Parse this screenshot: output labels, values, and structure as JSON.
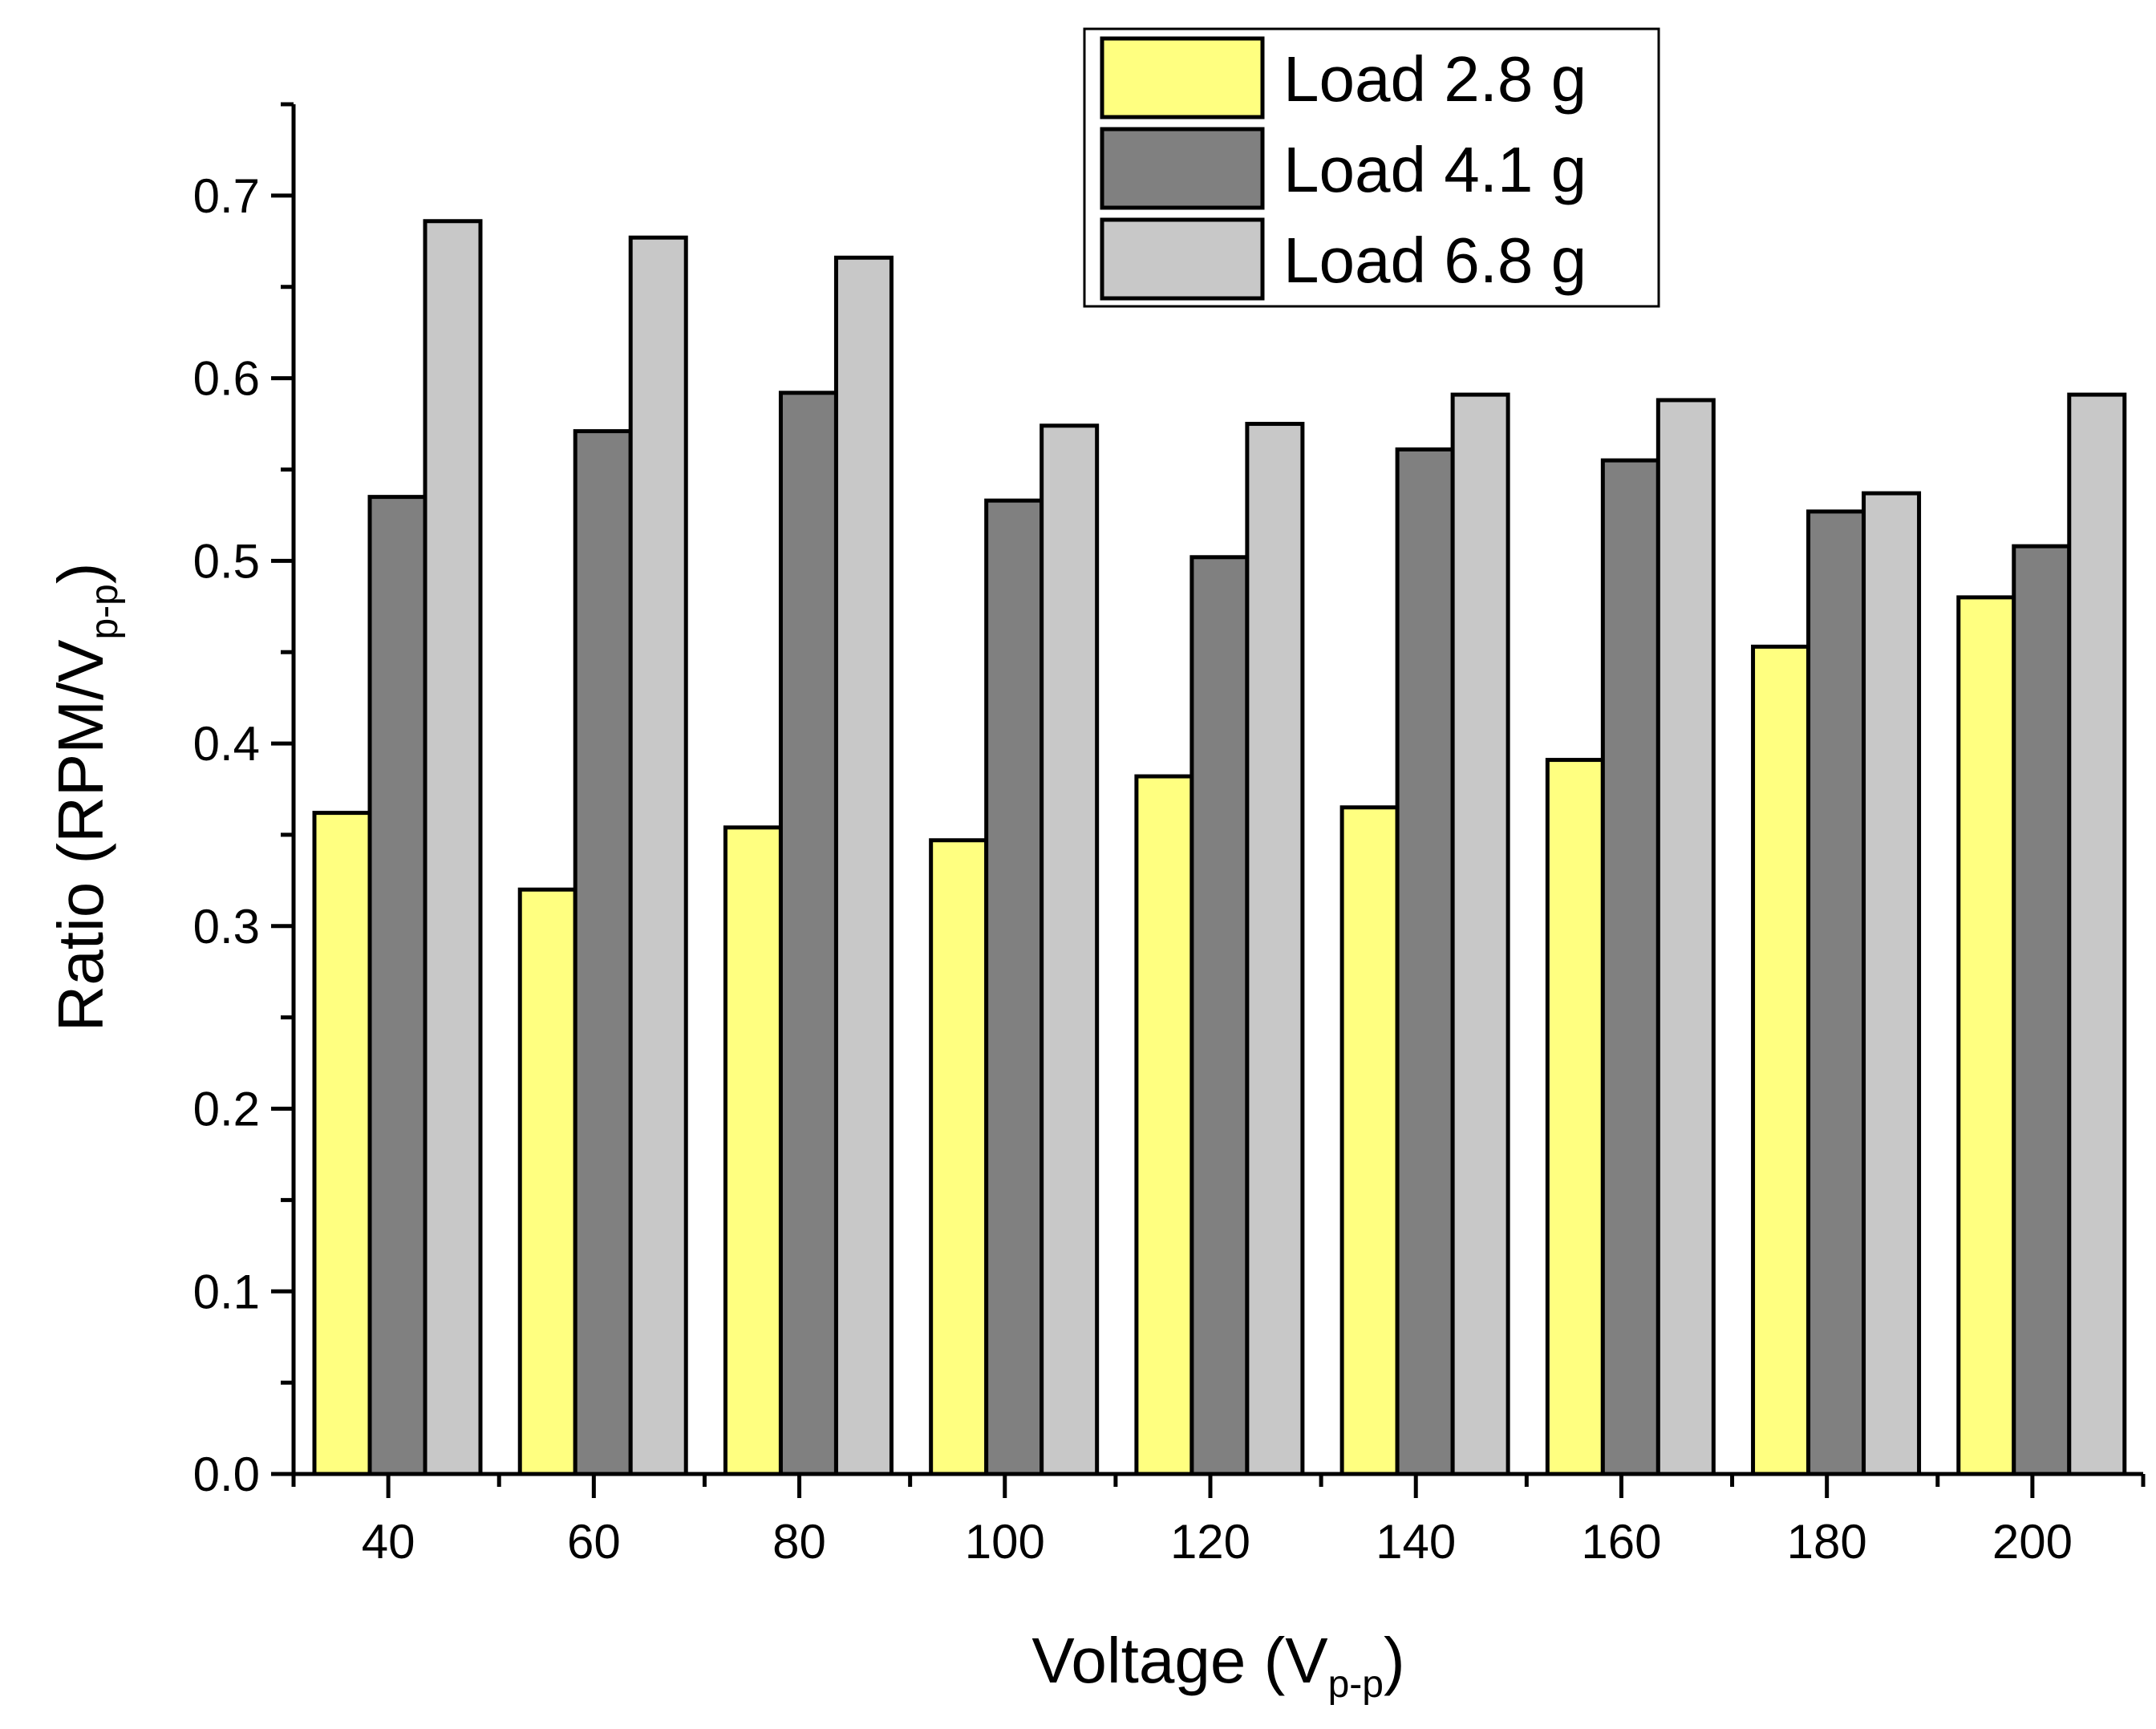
{
  "chart_data": {
    "type": "bar",
    "title": "",
    "xlabel": "Voltage (V",
    "xlabel_sub": "p-p",
    "xlabel_end": ")",
    "ylabel": "Ratio (RPM/V",
    "ylabel_sub": "p-p",
    "ylabel_end": ")",
    "categories": [
      "40",
      "60",
      "80",
      "100",
      "120",
      "140",
      "160",
      "180",
      "200"
    ],
    "ylim": [
      0,
      0.75
    ],
    "yticks": [
      0.0,
      0.1,
      0.2,
      0.3,
      0.4,
      0.5,
      0.6,
      0.7
    ],
    "ytick_labels": [
      "0.0",
      "0.1",
      "0.2",
      "0.3",
      "0.4",
      "0.5",
      "0.6",
      "0.7"
    ],
    "grid": false,
    "legend_position": "top-right",
    "series": [
      {
        "name": "Load 2.8 g",
        "color": "#ffff80",
        "values": [
          0.362,
          0.32,
          0.354,
          0.347,
          0.382,
          0.365,
          0.391,
          0.453,
          0.48
        ]
      },
      {
        "name": "Load 4.1 g",
        "color": "#808080",
        "values": [
          0.535,
          0.571,
          0.592,
          0.533,
          0.502,
          0.561,
          0.555,
          0.527,
          0.508
        ]
      },
      {
        "name": "Load 6.8 g",
        "color": "#c8c8c8",
        "values": [
          0.686,
          0.677,
          0.666,
          0.574,
          0.575,
          0.591,
          0.588,
          0.537,
          0.591
        ]
      }
    ]
  }
}
